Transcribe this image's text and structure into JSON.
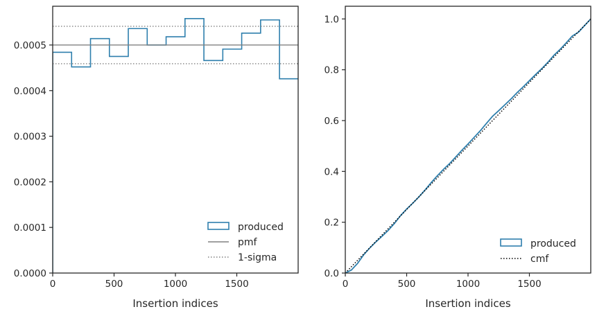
{
  "chart_data": [
    {
      "type": "histogram",
      "xlabel": "Insertion indices",
      "ylabel": "",
      "xlim": [
        0,
        2000
      ],
      "ylim": [
        0,
        0.000585
      ],
      "xticks": [
        "0",
        "500",
        "1000",
        "1500"
      ],
      "xtick_values": [
        0,
        500,
        1000,
        1500
      ],
      "yticks": [
        "0.0000",
        "0.0001",
        "0.0002",
        "0.0003",
        "0.0004",
        "0.0005"
      ],
      "ytick_values": [
        0,
        0.0001,
        0.0002,
        0.0003,
        0.0004,
        0.0005
      ],
      "bin_edges": [
        0,
        154,
        308,
        462,
        616,
        770,
        924,
        1078,
        1232,
        1386,
        1540,
        1694,
        1848,
        2000
      ],
      "series": [
        {
          "name": "produced",
          "style": "step",
          "color": "#2e7fad",
          "values": [
            0.000484,
            0.000452,
            0.000514,
            0.000475,
            0.000536,
            0.0005,
            0.000518,
            0.000558,
            0.000466,
            0.000491,
            0.000526,
            0.000555,
            0.000426
          ]
        },
        {
          "name": "pmf",
          "style": "hline",
          "color": "#808080",
          "value": 0.0005
        },
        {
          "name": "1-sigma",
          "style": "hline-dotted",
          "color": "#808080",
          "values": [
            0.000541,
            0.000459
          ]
        }
      ],
      "legend": "lower-right",
      "grid": false
    },
    {
      "type": "line",
      "xlabel": "Insertion indices",
      "ylabel": "",
      "xlim": [
        0,
        2000
      ],
      "ylim": [
        0,
        1.05
      ],
      "xticks": [
        "0",
        "500",
        "1000",
        "1500"
      ],
      "xtick_values": [
        0,
        500,
        1000,
        1500
      ],
      "yticks": [
        "0.0",
        "0.2",
        "0.4",
        "0.6",
        "0.8",
        "1.0"
      ],
      "ytick_values": [
        0,
        0.2,
        0.4,
        0.6,
        0.8,
        1.0
      ],
      "series": [
        {
          "name": "produced",
          "style": "step",
          "color": "#2e7fad",
          "x": [
            0,
            50,
            100,
            150,
            200,
            250,
            300,
            350,
            400,
            450,
            500,
            550,
            600,
            650,
            700,
            750,
            800,
            850,
            900,
            950,
            1000,
            1050,
            1100,
            1150,
            1200,
            1250,
            1300,
            1350,
            1400,
            1450,
            1500,
            1550,
            1600,
            1650,
            1700,
            1750,
            1800,
            1850,
            1900,
            1950,
            2000
          ],
          "y": [
            0.0,
            0.012,
            0.038,
            0.072,
            0.099,
            0.123,
            0.145,
            0.168,
            0.195,
            0.226,
            0.252,
            0.275,
            0.3,
            0.327,
            0.356,
            0.383,
            0.408,
            0.431,
            0.457,
            0.483,
            0.508,
            0.534,
            0.56,
            0.589,
            0.617,
            0.639,
            0.662,
            0.685,
            0.71,
            0.733,
            0.757,
            0.781,
            0.804,
            0.829,
            0.857,
            0.88,
            0.906,
            0.933,
            0.948,
            0.974,
            1.0
          ]
        },
        {
          "name": "cmf",
          "style": "dotted",
          "color": "#000000",
          "x": [
            0,
            2000
          ],
          "y": [
            0,
            1.0
          ]
        }
      ],
      "legend": "lower-right",
      "grid": false
    }
  ]
}
